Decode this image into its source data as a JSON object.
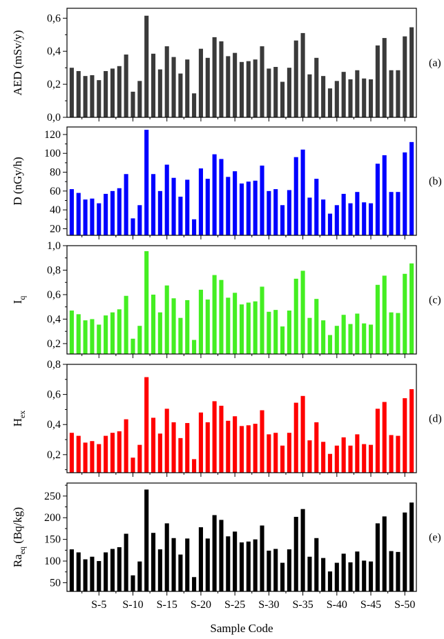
{
  "figure": {
    "xlabel": "Sample Code",
    "x_ticks": [
      "S-5",
      "S-10",
      "S-15",
      "S-20",
      "S-25",
      "S-30",
      "S-35",
      "S-40",
      "S-45",
      "S-50"
    ],
    "x_tick_positions": [
      5,
      10,
      15,
      20,
      25,
      30,
      35,
      40,
      45,
      50
    ],
    "sample_count": 51
  },
  "chart_data": [
    {
      "type": "bar",
      "panel_tag": "(a)",
      "ylabel": "AED (mSv/y)",
      "ylabel_main": "AED (mSv/y)",
      "ylabel_sub": "",
      "color": "#3a3a3a",
      "ylim": [
        0.0,
        0.66
      ],
      "y_ticks": [
        0.0,
        0.2,
        0.4,
        0.6
      ],
      "y_tick_labels": [
        "0,0",
        "0,2",
        "0,4",
        "0,6"
      ],
      "values": [
        0.3,
        0.28,
        0.25,
        0.255,
        0.225,
        0.28,
        0.295,
        0.31,
        0.38,
        0.155,
        0.22,
        0.615,
        0.385,
        0.29,
        0.43,
        0.365,
        0.265,
        0.35,
        0.145,
        0.415,
        0.36,
        0.485,
        0.46,
        0.37,
        0.39,
        0.335,
        0.34,
        0.35,
        0.43,
        0.295,
        0.305,
        0.215,
        0.3,
        0.465,
        0.51,
        0.26,
        0.36,
        0.25,
        0.175,
        0.22,
        0.275,
        0.23,
        0.285,
        0.235,
        0.23,
        0.435,
        0.48,
        0.285,
        0.285,
        0.49,
        0.545
      ]
    },
    {
      "type": "bar",
      "panel_tag": "(b)",
      "ylabel": "D (nGy/h)",
      "ylabel_main": "D (nGy/h)",
      "ylabel_sub": "",
      "color": "#0000ff",
      "ylim": [
        13,
        128
      ],
      "y_ticks": [
        20,
        40,
        60,
        80,
        100,
        120
      ],
      "y_tick_labels": [
        "20",
        "40",
        "60",
        "80",
        "100",
        "120"
      ],
      "values": [
        62,
        58,
        51,
        52,
        47,
        57,
        60,
        63,
        78,
        31,
        45,
        125,
        78,
        60,
        88,
        74,
        54,
        72,
        30,
        84,
        73,
        99,
        94,
        75,
        81,
        68,
        70,
        71,
        87,
        60,
        62,
        45,
        61,
        96,
        104,
        53,
        73,
        51,
        36,
        45,
        57,
        47,
        59,
        48,
        47,
        89,
        98,
        59,
        59,
        101,
        112
      ]
    },
    {
      "type": "bar",
      "panel_tag": "(c)",
      "ylabel": "Iq",
      "ylabel_main": "I",
      "ylabel_sub": "q",
      "color": "#44ee22",
      "ylim": [
        0.115,
        1.0
      ],
      "y_ticks": [
        0.2,
        0.4,
        0.6,
        0.8,
        1.0
      ],
      "y_tick_labels": [
        "0,2",
        "0,4",
        "0,6",
        "0,8",
        "1,0"
      ],
      "values": [
        0.47,
        0.44,
        0.39,
        0.4,
        0.355,
        0.43,
        0.455,
        0.48,
        0.59,
        0.24,
        0.345,
        0.955,
        0.6,
        0.455,
        0.675,
        0.57,
        0.41,
        0.555,
        0.23,
        0.64,
        0.56,
        0.76,
        0.72,
        0.575,
        0.615,
        0.52,
        0.535,
        0.545,
        0.665,
        0.46,
        0.475,
        0.34,
        0.47,
        0.73,
        0.795,
        0.41,
        0.565,
        0.39,
        0.27,
        0.345,
        0.435,
        0.36,
        0.445,
        0.365,
        0.355,
        0.68,
        0.755,
        0.455,
        0.45,
        0.77,
        0.855
      ]
    },
    {
      "type": "bar",
      "panel_tag": "(d)",
      "ylabel": "Hex",
      "ylabel_main": "H",
      "ylabel_sub": "ex",
      "color": "#ff0000",
      "ylim": [
        0.08,
        0.8
      ],
      "y_ticks": [
        0.2,
        0.4,
        0.6,
        0.8
      ],
      "y_tick_labels": [
        "0,2",
        "0,4",
        "0,6",
        "0,8"
      ],
      "values": [
        0.345,
        0.325,
        0.28,
        0.29,
        0.27,
        0.325,
        0.345,
        0.355,
        0.435,
        0.18,
        0.265,
        0.715,
        0.445,
        0.34,
        0.505,
        0.415,
        0.31,
        0.41,
        0.17,
        0.48,
        0.415,
        0.555,
        0.525,
        0.425,
        0.455,
        0.39,
        0.395,
        0.405,
        0.495,
        0.335,
        0.345,
        0.26,
        0.345,
        0.545,
        0.59,
        0.295,
        0.415,
        0.285,
        0.205,
        0.26,
        0.315,
        0.26,
        0.335,
        0.27,
        0.265,
        0.505,
        0.55,
        0.33,
        0.325,
        0.575,
        0.635
      ]
    },
    {
      "type": "bar",
      "panel_tag": "(e)",
      "ylabel": "Raeq (Bq/kg)",
      "ylabel_main": "Ra",
      "ylabel_sub": "eq",
      "ylabel_tail": " (Bq/kg)",
      "color": "#000000",
      "ylim": [
        30,
        280
      ],
      "y_ticks": [
        50,
        100,
        150,
        200,
        250
      ],
      "y_tick_labels": [
        "50",
        "100",
        "150",
        "200",
        "250"
      ],
      "values": [
        127,
        120,
        104,
        110,
        100,
        120,
        128,
        132,
        163,
        67,
        99,
        265,
        165,
        127,
        187,
        153,
        115,
        152,
        63,
        178,
        152,
        206,
        195,
        157,
        168,
        143,
        145,
        150,
        182,
        124,
        128,
        96,
        127,
        202,
        220,
        110,
        153,
        107,
        76,
        96,
        117,
        97,
        122,
        101,
        99,
        187,
        203,
        123,
        121,
        212,
        235
      ]
    }
  ]
}
